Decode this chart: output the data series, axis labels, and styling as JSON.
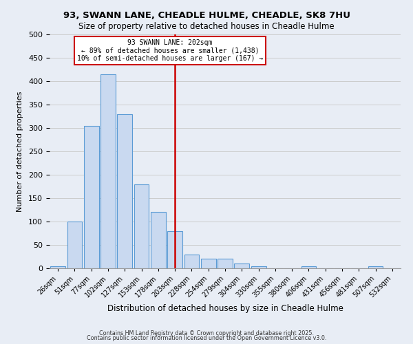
{
  "title": "93, SWANN LANE, CHEADLE HULME, CHEADLE, SK8 7HU",
  "subtitle": "Size of property relative to detached houses in Cheadle Hulme",
  "xlabel": "Distribution of detached houses by size in Cheadle Hulme",
  "ylabel": "Number of detached properties",
  "bin_labels": [
    "26sqm",
    "51sqm",
    "77sqm",
    "102sqm",
    "127sqm",
    "153sqm",
    "178sqm",
    "203sqm",
    "228sqm",
    "254sqm",
    "279sqm",
    "304sqm",
    "330sqm",
    "355sqm",
    "380sqm",
    "406sqm",
    "431sqm",
    "456sqm",
    "481sqm",
    "507sqm",
    "532sqm"
  ],
  "bar_values": [
    5,
    100,
    305,
    415,
    330,
    180,
    120,
    80,
    30,
    20,
    20,
    10,
    5,
    0,
    0,
    5,
    0,
    0,
    0,
    5,
    0
  ],
  "bar_color": "#c9d9f0",
  "bar_edge_color": "#5b9bd5",
  "vline_index": 7,
  "vline_color": "#cc0000",
  "annotation_line1": "93 SWANN LANE: 202sqm",
  "annotation_line2": "← 89% of detached houses are smaller (1,438)",
  "annotation_line3": "10% of semi-detached houses are larger (167) →",
  "ylim_max": 500,
  "ytick_step": 50,
  "grid_color": "#cccccc",
  "bg_color": "#e8edf5",
  "footer1": "Contains HM Land Registry data © Crown copyright and database right 2025.",
  "footer2": "Contains public sector information licensed under the Open Government Licence v3.0."
}
